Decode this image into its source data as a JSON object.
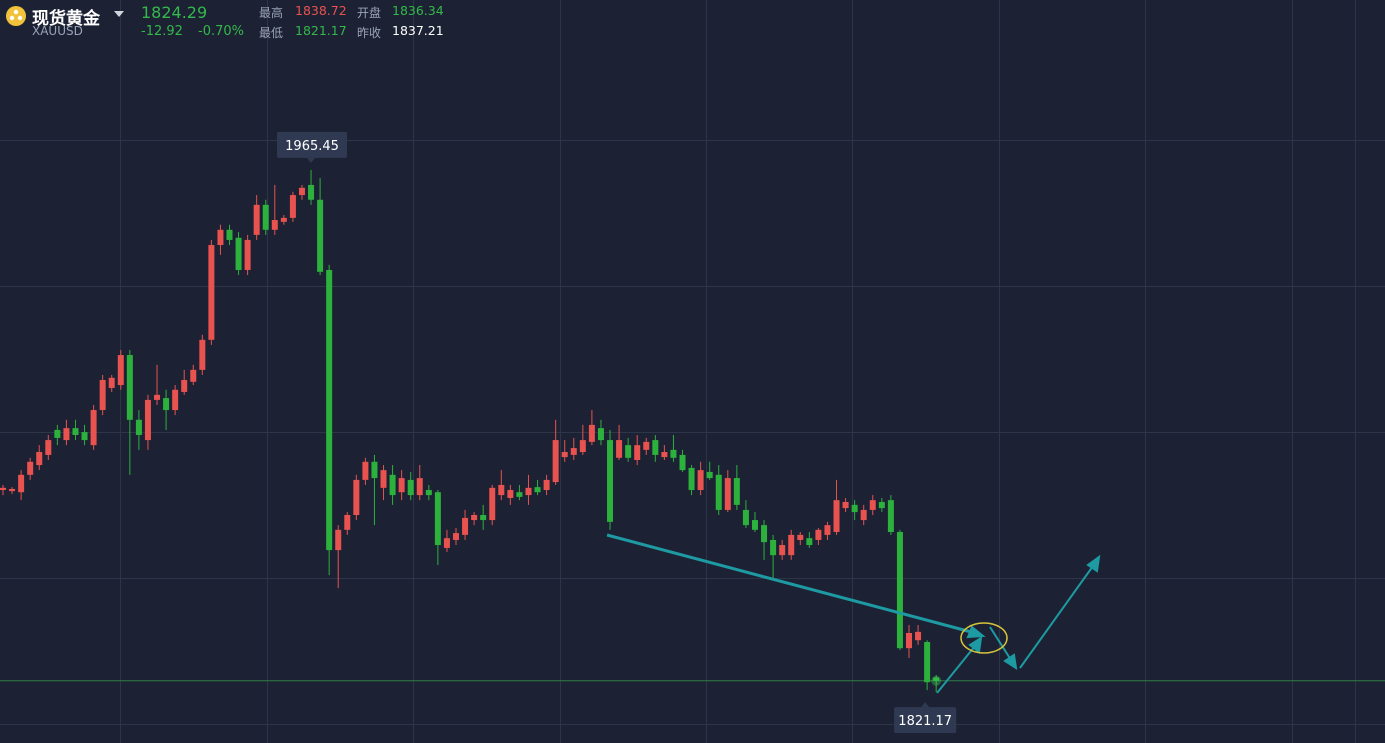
{
  "header": {
    "name": "现货黄金",
    "symbol": "XAUUSD",
    "price": "1824.29",
    "change": "-12.92",
    "change_pct": "-0.70%",
    "stats": [
      {
        "label": "最高",
        "value": "1838.72"
      },
      {
        "label": "开盘",
        "value": "1836.34"
      },
      {
        "label": "最低",
        "value": "1821.17"
      },
      {
        "label": "昨收",
        "value": "1837.21"
      }
    ]
  },
  "chart_data": {
    "type": "candlestick",
    "up_color": "#e8524f",
    "down_color": "#2db13d",
    "price_line_color": "#2f7d45",
    "ylim": [
      1807.1,
      2012.4
    ],
    "open": [
      1877.0,
      1876.7,
      1876.4,
      1881.2,
      1883.9,
      1886.7,
      1893.6,
      1890.8,
      1894.1,
      1893.0,
      1889.4,
      1899.1,
      1905.2,
      1906.0,
      1914.3,
      1896.4,
      1890.8,
      1901.9,
      1902.4,
      1899.1,
      1904.1,
      1906.9,
      1910.2,
      1918.5,
      1944.7,
      1948.9,
      1946.7,
      1937.8,
      1947.5,
      1955.8,
      1948.9,
      1951.1,
      1952.2,
      1958.5,
      1961.3,
      1957.2,
      1937.8,
      1860.4,
      1866.0,
      1870.1,
      1879.8,
      1884.8,
      1877.6,
      1881.2,
      1876.4,
      1879.8,
      1875.6,
      1877.0,
      1876.4,
      1861.0,
      1863.2,
      1864.6,
      1868.7,
      1870.1,
      1868.7,
      1875.6,
      1874.8,
      1876.4,
      1875.6,
      1877.8,
      1877.0,
      1879.2,
      1886.1,
      1886.7,
      1887.5,
      1890.3,
      1894.1,
      1890.8,
      1885.9,
      1889.4,
      1885.3,
      1888.1,
      1890.8,
      1886.1,
      1888.1,
      1886.7,
      1883.1,
      1877.0,
      1882.0,
      1881.2,
      1871.5,
      1880.3,
      1871.5,
      1868.7,
      1867.3,
      1863.2,
      1859.0,
      1859.0,
      1863.2,
      1863.7,
      1863.2,
      1864.6,
      1865.4,
      1872.0,
      1872.9,
      1868.7,
      1871.5,
      1873.7,
      1874.2,
      1865.4,
      1833.3,
      1835.5,
      1835.0,
      1825.2
    ],
    "high": [
      1878.4,
      1877.8,
      1882.5,
      1885.9,
      1889.4,
      1892.2,
      1895.0,
      1896.4,
      1896.4,
      1895.0,
      1900.5,
      1908.8,
      1908.8,
      1915.7,
      1915.7,
      1899.1,
      1903.3,
      1911.6,
      1904.7,
      1906.0,
      1910.2,
      1911.6,
      1919.9,
      1946.1,
      1950.3,
      1950.3,
      1948.3,
      1947.5,
      1958.5,
      1957.2,
      1961.3,
      1953.0,
      1959.4,
      1961.3,
      1965.45,
      1963.2,
      1939.2,
      1867.3,
      1870.9,
      1881.2,
      1885.9,
      1886.7,
      1883.9,
      1883.9,
      1882.5,
      1882.0,
      1883.9,
      1878.4,
      1877.0,
      1866.0,
      1866.5,
      1871.5,
      1870.9,
      1872.9,
      1878.4,
      1882.5,
      1878.4,
      1878.4,
      1881.2,
      1879.8,
      1881.2,
      1896.4,
      1890.8,
      1891.4,
      1895.0,
      1899.1,
      1896.4,
      1893.6,
      1895.0,
      1891.4,
      1892.2,
      1891.4,
      1892.2,
      1889.4,
      1892.2,
      1888.1,
      1883.9,
      1884.8,
      1884.8,
      1883.9,
      1882.5,
      1883.9,
      1874.2,
      1870.9,
      1868.7,
      1864.6,
      1863.2,
      1866.0,
      1865.4,
      1865.4,
      1866.5,
      1868.2,
      1879.8,
      1874.8,
      1874.2,
      1872.9,
      1875.6,
      1874.8,
      1875.6,
      1866.0,
      1839.7,
      1839.7,
      1835.5,
      1825.9
    ],
    "low": [
      1875.6,
      1875.9,
      1874.2,
      1879.8,
      1882.5,
      1885.3,
      1889.4,
      1889.4,
      1890.8,
      1889.4,
      1888.1,
      1897.7,
      1904.1,
      1904.7,
      1881.2,
      1888.1,
      1888.1,
      1900.5,
      1893.6,
      1897.7,
      1903.3,
      1906.0,
      1908.8,
      1917.1,
      1942.0,
      1944.7,
      1936.4,
      1936.4,
      1946.1,
      1947.5,
      1947.5,
      1950.3,
      1951.1,
      1957.2,
      1955.8,
      1936.4,
      1853.5,
      1849.9,
      1864.6,
      1868.7,
      1878.4,
      1867.3,
      1874.2,
      1872.9,
      1874.2,
      1874.2,
      1874.2,
      1874.2,
      1856.3,
      1859.9,
      1861.8,
      1863.2,
      1867.3,
      1866.0,
      1867.3,
      1874.2,
      1872.9,
      1874.2,
      1872.9,
      1875.6,
      1875.6,
      1878.4,
      1884.8,
      1885.3,
      1886.7,
      1889.4,
      1889.4,
      1866.0,
      1885.3,
      1884.8,
      1883.9,
      1886.7,
      1884.8,
      1885.3,
      1884.8,
      1882.0,
      1875.6,
      1875.6,
      1879.8,
      1870.1,
      1870.9,
      1871.5,
      1866.5,
      1865.4,
      1857.7,
      1852.1,
      1857.7,
      1857.7,
      1861.8,
      1861.0,
      1861.8,
      1863.2,
      1864.6,
      1870.9,
      1868.7,
      1867.3,
      1870.1,
      1870.9,
      1864.6,
      1832.8,
      1830.6,
      1834.2,
      1821.7,
      1821.17
    ],
    "close": [
      1877.6,
      1877.3,
      1881.2,
      1884.8,
      1887.5,
      1890.8,
      1891.4,
      1894.1,
      1892.2,
      1890.8,
      1899.1,
      1907.4,
      1908.0,
      1914.3,
      1896.4,
      1892.2,
      1901.9,
      1903.3,
      1899.1,
      1904.7,
      1907.4,
      1910.2,
      1918.5,
      1944.7,
      1948.9,
      1946.1,
      1937.8,
      1946.1,
      1955.8,
      1948.9,
      1951.6,
      1952.2,
      1958.5,
      1960.5,
      1957.2,
      1937.3,
      1860.4,
      1866.0,
      1870.1,
      1879.8,
      1884.8,
      1880.3,
      1882.5,
      1875.6,
      1880.3,
      1875.6,
      1880.3,
      1875.6,
      1861.8,
      1863.7,
      1865.1,
      1869.3,
      1870.1,
      1868.7,
      1877.6,
      1878.4,
      1877.0,
      1875.1,
      1877.6,
      1876.4,
      1879.8,
      1890.8,
      1887.5,
      1888.6,
      1890.8,
      1895.0,
      1890.8,
      1868.2,
      1890.8,
      1885.9,
      1889.4,
      1890.3,
      1886.7,
      1887.5,
      1885.9,
      1882.5,
      1877.0,
      1882.5,
      1880.3,
      1871.5,
      1880.3,
      1872.9,
      1867.3,
      1866.0,
      1862.6,
      1859.0,
      1861.8,
      1864.6,
      1864.6,
      1861.8,
      1866.0,
      1867.3,
      1874.2,
      1873.7,
      1870.9,
      1871.5,
      1874.2,
      1872.0,
      1865.4,
      1833.3,
      1837.5,
      1837.8,
      1823.9,
      1824.29
    ]
  }
}
